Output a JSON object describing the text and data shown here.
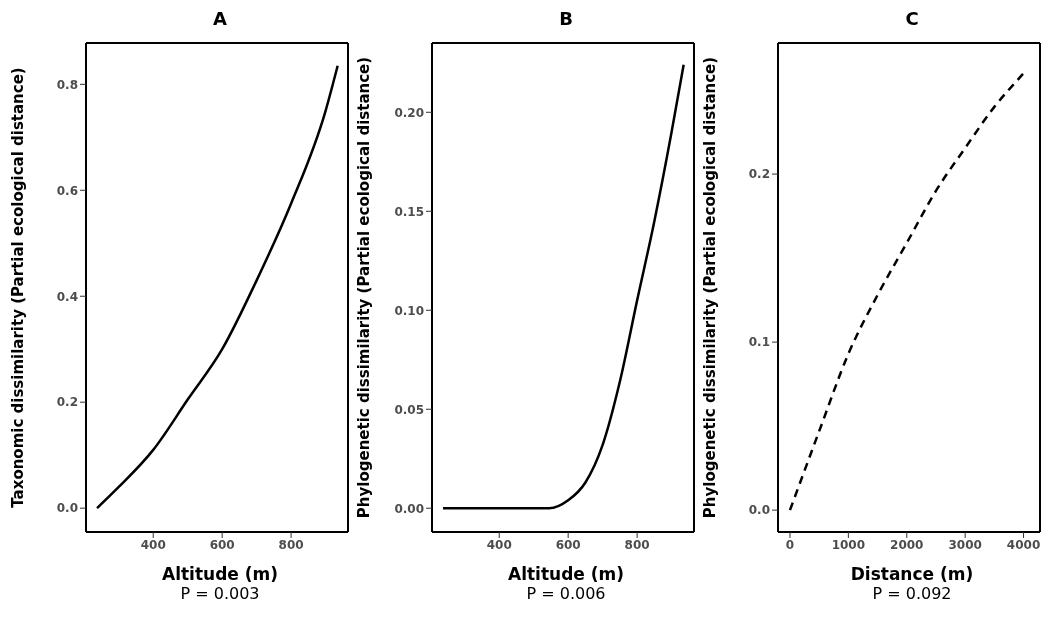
{
  "chart_data": [
    {
      "type": "line",
      "title": "A",
      "xlabel": "Altitude (m)",
      "ylabel": "Taxonomic dissimilarity (Partial ecological distance)",
      "annotations": [
        "P = 0.003"
      ],
      "x": [
        237,
        300,
        400,
        500,
        600,
        700,
        800,
        900,
        935
      ],
      "values": [
        0,
        0.04,
        0.11,
        0.205,
        0.3,
        0.43,
        0.575,
        0.75,
        0.835
      ],
      "color": "#000000",
      "xlim": [
        205,
        965
      ],
      "xticks": [
        400,
        600,
        800
      ],
      "ylim": [
        -0.045,
        0.878
      ],
      "yticks": [
        {
          "value": 0,
          "label": "0.0"
        },
        0.2,
        0.4,
        0.6,
        0.8
      ]
    },
    {
      "type": "line",
      "title": "B",
      "xlabel": "Altitude (m)",
      "ylabel": "Phylogenetic dissimilarity (Partial ecological distance)",
      "annotations": [
        "P = 0.006"
      ],
      "x": [
        237,
        400,
        545,
        600,
        650,
        700,
        750,
        800,
        850,
        900,
        935
      ],
      "values": [
        0,
        0,
        0,
        0.004,
        0.013,
        0.032,
        0.064,
        0.105,
        0.145,
        0.19,
        0.224
      ],
      "color": "#000000",
      "xlim": [
        205,
        965
      ],
      "xticks": [
        400,
        600,
        800
      ],
      "ylim": [
        -0.012,
        0.235
      ],
      "yticks": [
        {
          "value": 0,
          "label": "0.00"
        },
        {
          "value": 0.05,
          "label": "0.05"
        },
        {
          "value": 0.1,
          "label": "0.10"
        },
        {
          "value": 0.15,
          "label": "0.15"
        },
        {
          "value": 0.2,
          "label": "0.20"
        }
      ]
    },
    {
      "type": "line",
      "title": "C",
      "xlabel": "Distance (m)",
      "ylabel": "Phylogenetic dissimilarity (Partial ecological distance)",
      "annotations": [
        "P = 0.092"
      ],
      "x": [
        0,
        500,
        1000,
        1500,
        2000,
        2500,
        3000,
        3500,
        4000,
        4050
      ],
      "values": [
        0,
        0.047,
        0.093,
        0.128,
        0.159,
        0.19,
        0.2155,
        0.24,
        0.26,
        0.262
      ],
      "color": "#000000",
      "line_style": "dashed",
      "xlim": [
        -205,
        4282
      ],
      "xticks": [
        0,
        1000,
        2000,
        3000,
        4000
      ],
      "ylim": [
        -0.013,
        0.278
      ],
      "yticks": [
        {
          "value": 0,
          "label": "0.0"
        },
        {
          "value": 0.1,
          "label": "0.1"
        },
        {
          "value": 0.2,
          "label": "0.2"
        }
      ]
    }
  ]
}
